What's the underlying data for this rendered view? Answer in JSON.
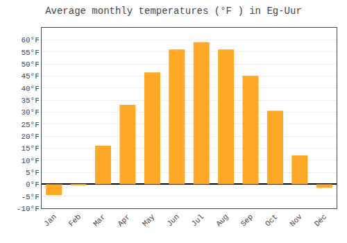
{
  "chart_data": {
    "type": "bar",
    "title": "Average monthly temperatures (°F ) in Eg-Uur",
    "categories": [
      "Jan",
      "Feb",
      "Mar",
      "Apr",
      "May",
      "Jun",
      "Jul",
      "Aug",
      "Sep",
      "Oct",
      "Nov",
      "Dec"
    ],
    "values": [
      -4.5,
      -0.5,
      16,
      33,
      46.5,
      56,
      59,
      56,
      45,
      30.5,
      12,
      -1.5
    ],
    "color": "#FFA726",
    "ylim": [
      -10,
      65
    ],
    "yticks": [
      {
        "value": -10,
        "label": "-10°F"
      },
      {
        "value": -5,
        "label": "-5°F"
      },
      {
        "value": 0,
        "label": "0°F"
      },
      {
        "value": 5,
        "label": "5°F"
      },
      {
        "value": 10,
        "label": "10°F"
      },
      {
        "value": 15,
        "label": "15°F"
      },
      {
        "value": 20,
        "label": "20°F"
      },
      {
        "value": 25,
        "label": "25°F"
      },
      {
        "value": 30,
        "label": "30°F"
      },
      {
        "value": 35,
        "label": "35°F"
      },
      {
        "value": 40,
        "label": "40°F"
      },
      {
        "value": 45,
        "label": "45°F"
      },
      {
        "value": 50,
        "label": "50°F"
      },
      {
        "value": 55,
        "label": "55°F"
      },
      {
        "value": 60,
        "label": "60°F"
      }
    ],
    "grid": true
  }
}
